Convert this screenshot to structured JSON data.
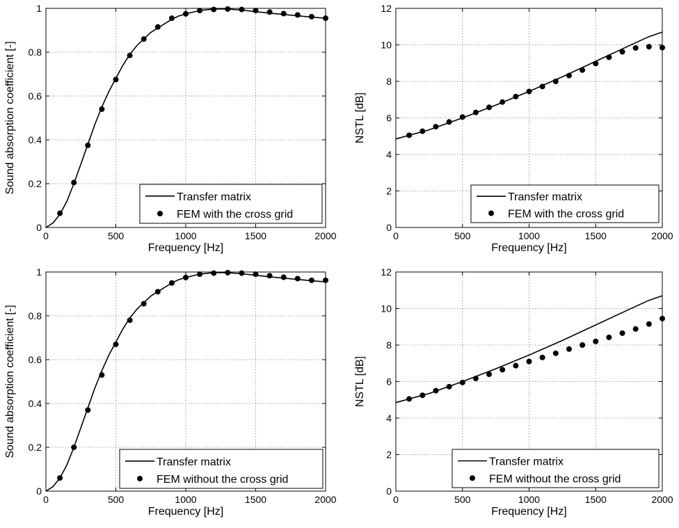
{
  "chart_data": [
    {
      "type": "line",
      "xlabel": "Frequency [Hz]",
      "ylabel": "Sound absorption coefficient [-]",
      "xlim": [
        0,
        2000
      ],
      "ylim": [
        0,
        1
      ],
      "xticks": [
        0,
        500,
        1000,
        1500,
        2000
      ],
      "yticks": [
        0,
        0.2,
        0.4,
        0.6,
        0.8,
        1
      ],
      "xtick_labels": [
        "0",
        "500",
        "1000",
        "1500",
        "2000"
      ],
      "ytick_labels": [
        "0",
        "0.2",
        "0.4",
        "0.6",
        "0.8",
        "1"
      ],
      "grid": true,
      "legend_position": "bottom-right",
      "series": [
        {
          "name": "Transfer matrix",
          "style": "solid-line",
          "x": [
            0,
            50,
            100,
            150,
            200,
            250,
            300,
            350,
            400,
            450,
            500,
            550,
            600,
            650,
            700,
            750,
            800,
            850,
            900,
            950,
            1000,
            1100,
            1200,
            1300,
            1400,
            1500,
            1600,
            1700,
            1800,
            1900,
            2000
          ],
          "y": [
            0,
            0.02,
            0.06,
            0.12,
            0.2,
            0.29,
            0.38,
            0.47,
            0.55,
            0.62,
            0.68,
            0.74,
            0.79,
            0.83,
            0.86,
            0.89,
            0.91,
            0.93,
            0.95,
            0.965,
            0.975,
            0.99,
            0.997,
            0.997,
            0.992,
            0.985,
            0.978,
            0.972,
            0.966,
            0.96,
            0.955
          ]
        },
        {
          "name": "FEM with the cross grid",
          "style": "dots",
          "x": [
            100,
            200,
            300,
            400,
            500,
            600,
            700,
            800,
            900,
            1000,
            1100,
            1200,
            1300,
            1400,
            1500,
            1600,
            1700,
            1800,
            1900,
            2000
          ],
          "y": [
            0.065,
            0.205,
            0.375,
            0.54,
            0.675,
            0.785,
            0.86,
            0.915,
            0.955,
            0.975,
            0.99,
            0.995,
            0.997,
            0.995,
            0.99,
            0.983,
            0.976,
            0.97,
            0.962,
            0.955
          ]
        }
      ]
    },
    {
      "type": "line",
      "xlabel": "Frequency [Hz]",
      "ylabel": "NSTL [dB]",
      "xlim": [
        0,
        2000
      ],
      "ylim": [
        0,
        12
      ],
      "xticks": [
        0,
        500,
        1000,
        1500,
        2000
      ],
      "yticks": [
        0,
        2,
        4,
        6,
        8,
        10,
        12
      ],
      "xtick_labels": [
        "0",
        "500",
        "1000",
        "1500",
        "2000"
      ],
      "ytick_labels": [
        "0",
        "2",
        "4",
        "6",
        "8",
        "10",
        "12"
      ],
      "grid": true,
      "legend_position": "bottom-right",
      "series": [
        {
          "name": "Transfer matrix",
          "style": "solid-line",
          "x": [
            0,
            250,
            500,
            750,
            1000,
            1250,
            1500,
            1750,
            1900,
            2000
          ],
          "y": [
            4.85,
            5.35,
            6.0,
            6.7,
            7.45,
            8.25,
            9.1,
            9.95,
            10.45,
            10.7
          ]
        },
        {
          "name": "FEM with the cross grid",
          "style": "dots",
          "x": [
            100,
            200,
            300,
            400,
            500,
            600,
            700,
            800,
            900,
            1000,
            1100,
            1200,
            1300,
            1400,
            1500,
            1600,
            1700,
            1800,
            1900,
            2000
          ],
          "y": [
            5.05,
            5.27,
            5.52,
            5.78,
            6.05,
            6.3,
            6.58,
            6.87,
            7.17,
            7.45,
            7.72,
            8.0,
            8.32,
            8.62,
            8.98,
            9.32,
            9.62,
            9.83,
            9.9,
            9.85
          ]
        }
      ]
    },
    {
      "type": "line",
      "xlabel": "Frequency [Hz]",
      "ylabel": "Sound absorption coefficient [-]",
      "xlim": [
        0,
        2000
      ],
      "ylim": [
        0,
        1
      ],
      "xticks": [
        0,
        500,
        1000,
        1500,
        2000
      ],
      "yticks": [
        0,
        0.2,
        0.4,
        0.6,
        0.8,
        1
      ],
      "xtick_labels": [
        "0",
        "500",
        "1000",
        "1500",
        "2000"
      ],
      "ytick_labels": [
        "0",
        "0.2",
        "0.4",
        "0.6",
        "0.8",
        "1"
      ],
      "grid": true,
      "legend_position": "bottom-right",
      "series": [
        {
          "name": "Transfer matrix",
          "style": "solid-line",
          "x": [
            0,
            50,
            100,
            150,
            200,
            250,
            300,
            350,
            400,
            450,
            500,
            550,
            600,
            650,
            700,
            750,
            800,
            850,
            900,
            950,
            1000,
            1100,
            1200,
            1300,
            1400,
            1500,
            1600,
            1700,
            1800,
            1900,
            2000
          ],
          "y": [
            0,
            0.02,
            0.06,
            0.12,
            0.2,
            0.29,
            0.38,
            0.47,
            0.55,
            0.62,
            0.68,
            0.74,
            0.79,
            0.83,
            0.86,
            0.89,
            0.91,
            0.93,
            0.95,
            0.965,
            0.975,
            0.99,
            0.997,
            0.997,
            0.992,
            0.985,
            0.978,
            0.972,
            0.966,
            0.96,
            0.955
          ]
        },
        {
          "name": "FEM without the cross grid",
          "style": "dots",
          "x": [
            100,
            200,
            300,
            400,
            500,
            600,
            700,
            800,
            900,
            1000,
            1100,
            1200,
            1300,
            1400,
            1500,
            1600,
            1700,
            1800,
            1900,
            2000
          ],
          "y": [
            0.06,
            0.2,
            0.37,
            0.53,
            0.67,
            0.78,
            0.855,
            0.91,
            0.95,
            0.975,
            0.99,
            0.995,
            0.997,
            0.995,
            0.99,
            0.983,
            0.976,
            0.97,
            0.962,
            0.962
          ]
        }
      ]
    },
    {
      "type": "line",
      "xlabel": "Frequency [Hz]",
      "ylabel": "NSTL [dB]",
      "xlim": [
        0,
        2000
      ],
      "ylim": [
        0,
        12
      ],
      "xticks": [
        0,
        500,
        1000,
        1500,
        2000
      ],
      "yticks": [
        0,
        2,
        4,
        6,
        8,
        10,
        12
      ],
      "xtick_labels": [
        "0",
        "500",
        "1000",
        "1500",
        "2000"
      ],
      "ytick_labels": [
        "0",
        "2",
        "4",
        "6",
        "8",
        "10",
        "12"
      ],
      "grid": true,
      "legend_position": "bottom-right",
      "series": [
        {
          "name": "Transfer matrix",
          "style": "solid-line",
          "x": [
            0,
            250,
            500,
            750,
            1000,
            1250,
            1500,
            1750,
            1900,
            2000
          ],
          "y": [
            4.85,
            5.35,
            6.0,
            6.7,
            7.45,
            8.25,
            9.1,
            9.95,
            10.45,
            10.7
          ]
        },
        {
          "name": "FEM without the cross grid",
          "style": "dots",
          "x": [
            100,
            200,
            300,
            400,
            500,
            600,
            700,
            800,
            900,
            1000,
            1100,
            1200,
            1300,
            1400,
            1500,
            1600,
            1700,
            1800,
            1900,
            2000
          ],
          "y": [
            5.05,
            5.25,
            5.5,
            5.72,
            5.95,
            6.17,
            6.4,
            6.65,
            6.87,
            7.1,
            7.32,
            7.55,
            7.78,
            8.0,
            8.2,
            8.42,
            8.65,
            8.88,
            9.15,
            9.45
          ]
        }
      ]
    }
  ]
}
